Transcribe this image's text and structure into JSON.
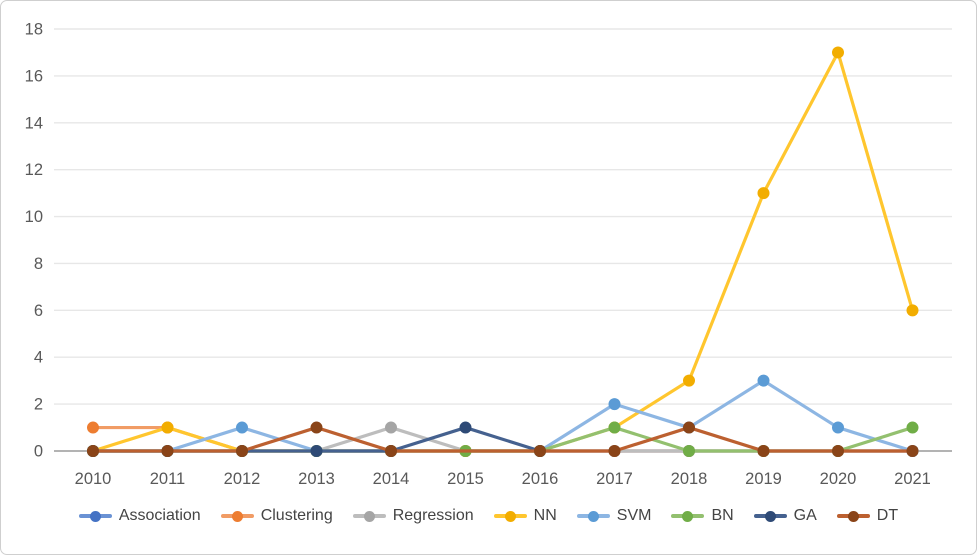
{
  "chart_data": {
    "type": "line",
    "title": "",
    "xlabel": "",
    "ylabel": "",
    "categories": [
      "2010",
      "2011",
      "2012",
      "2013",
      "2014",
      "2015",
      "2016",
      "2017",
      "2018",
      "2019",
      "2020",
      "2021"
    ],
    "ylim": [
      0,
      18
    ],
    "ytick_step": 2,
    "ytick_labels": [
      "0",
      "2",
      "4",
      "6",
      "8",
      "10",
      "12",
      "14",
      "16",
      "18"
    ],
    "grid": true,
    "legend_position": "bottom",
    "series": [
      {
        "name": "Association",
        "line_color": "#6A92D4",
        "marker_color": "#4472C4",
        "values": [
          0,
          0,
          0,
          0,
          0,
          0,
          0,
          0,
          0,
          0,
          0,
          0
        ]
      },
      {
        "name": "Clustering",
        "line_color": "#F19C65",
        "marker_color": "#ED7D31",
        "values": [
          1,
          1,
          0,
          0,
          0,
          0,
          0,
          0,
          0,
          0,
          0,
          0
        ]
      },
      {
        "name": "Regression",
        "line_color": "#BDBDBD",
        "marker_color": "#A5A5A5",
        "values": [
          0,
          0,
          0,
          0,
          1,
          0,
          0,
          0,
          0,
          0,
          0,
          0
        ]
      },
      {
        "name": "NN",
        "line_color": "#FFC62E",
        "marker_color": "#F2AD00",
        "values": [
          0,
          1,
          0,
          0,
          0,
          0,
          0,
          1,
          3,
          11,
          17,
          6
        ]
      },
      {
        "name": "SVM",
        "line_color": "#8DB6E3",
        "marker_color": "#5B9BD5",
        "values": [
          0,
          0,
          1,
          0,
          null,
          null,
          0,
          2,
          1,
          3,
          1,
          0
        ]
      },
      {
        "name": "BN",
        "line_color": "#93C06F",
        "marker_color": "#70AD47",
        "values": [
          0,
          0,
          0,
          0,
          0,
          0,
          0,
          1,
          0,
          0,
          0,
          1
        ]
      },
      {
        "name": "GA",
        "line_color": "#45618F",
        "marker_color": "#2E4A76",
        "values": [
          0,
          0,
          0,
          0,
          0,
          1,
          0,
          null,
          null,
          null,
          null,
          null
        ]
      },
      {
        "name": "DT",
        "line_color": "#BC6030",
        "marker_color": "#8A4418",
        "values": [
          0,
          0,
          0,
          1,
          0,
          null,
          0,
          0,
          1,
          0,
          0,
          0
        ]
      }
    ]
  },
  "colors": {
    "background": "#FFFFFF",
    "grid_line": "#E7E7E7",
    "axis_line": "#B3B3B3",
    "tick_label": "#595959",
    "legend_text": "#444444",
    "frame_border": "#CFCFCF"
  }
}
